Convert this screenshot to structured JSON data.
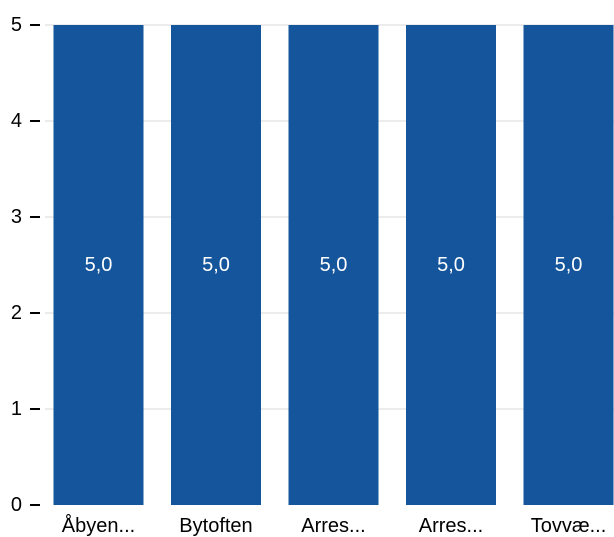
{
  "chart_data": {
    "type": "bar",
    "title": "",
    "xlabel": "",
    "ylabel": "",
    "categories": [
      "Åbyen...",
      "Bytoften",
      "Arres...",
      "Arres...",
      "Tovvæ..."
    ],
    "series": [
      {
        "values": [
          5.0,
          5.0,
          5.0,
          5.0,
          5.0
        ]
      }
    ],
    "data_labels": [
      "5,0",
      "5,0",
      "5,0",
      "5,0",
      "5,0"
    ],
    "ylim": [
      0,
      5
    ],
    "yticks": [
      0,
      1,
      2,
      3,
      4,
      5
    ],
    "ytick_labels": [
      "0",
      "1",
      "2",
      "3",
      "4",
      "5"
    ],
    "grid": true,
    "legend": "none",
    "colors": {
      "bar": "#14559b",
      "grid": "#d9d9d9",
      "axis_text": "#000000",
      "data_label": "#ffffff"
    }
  }
}
